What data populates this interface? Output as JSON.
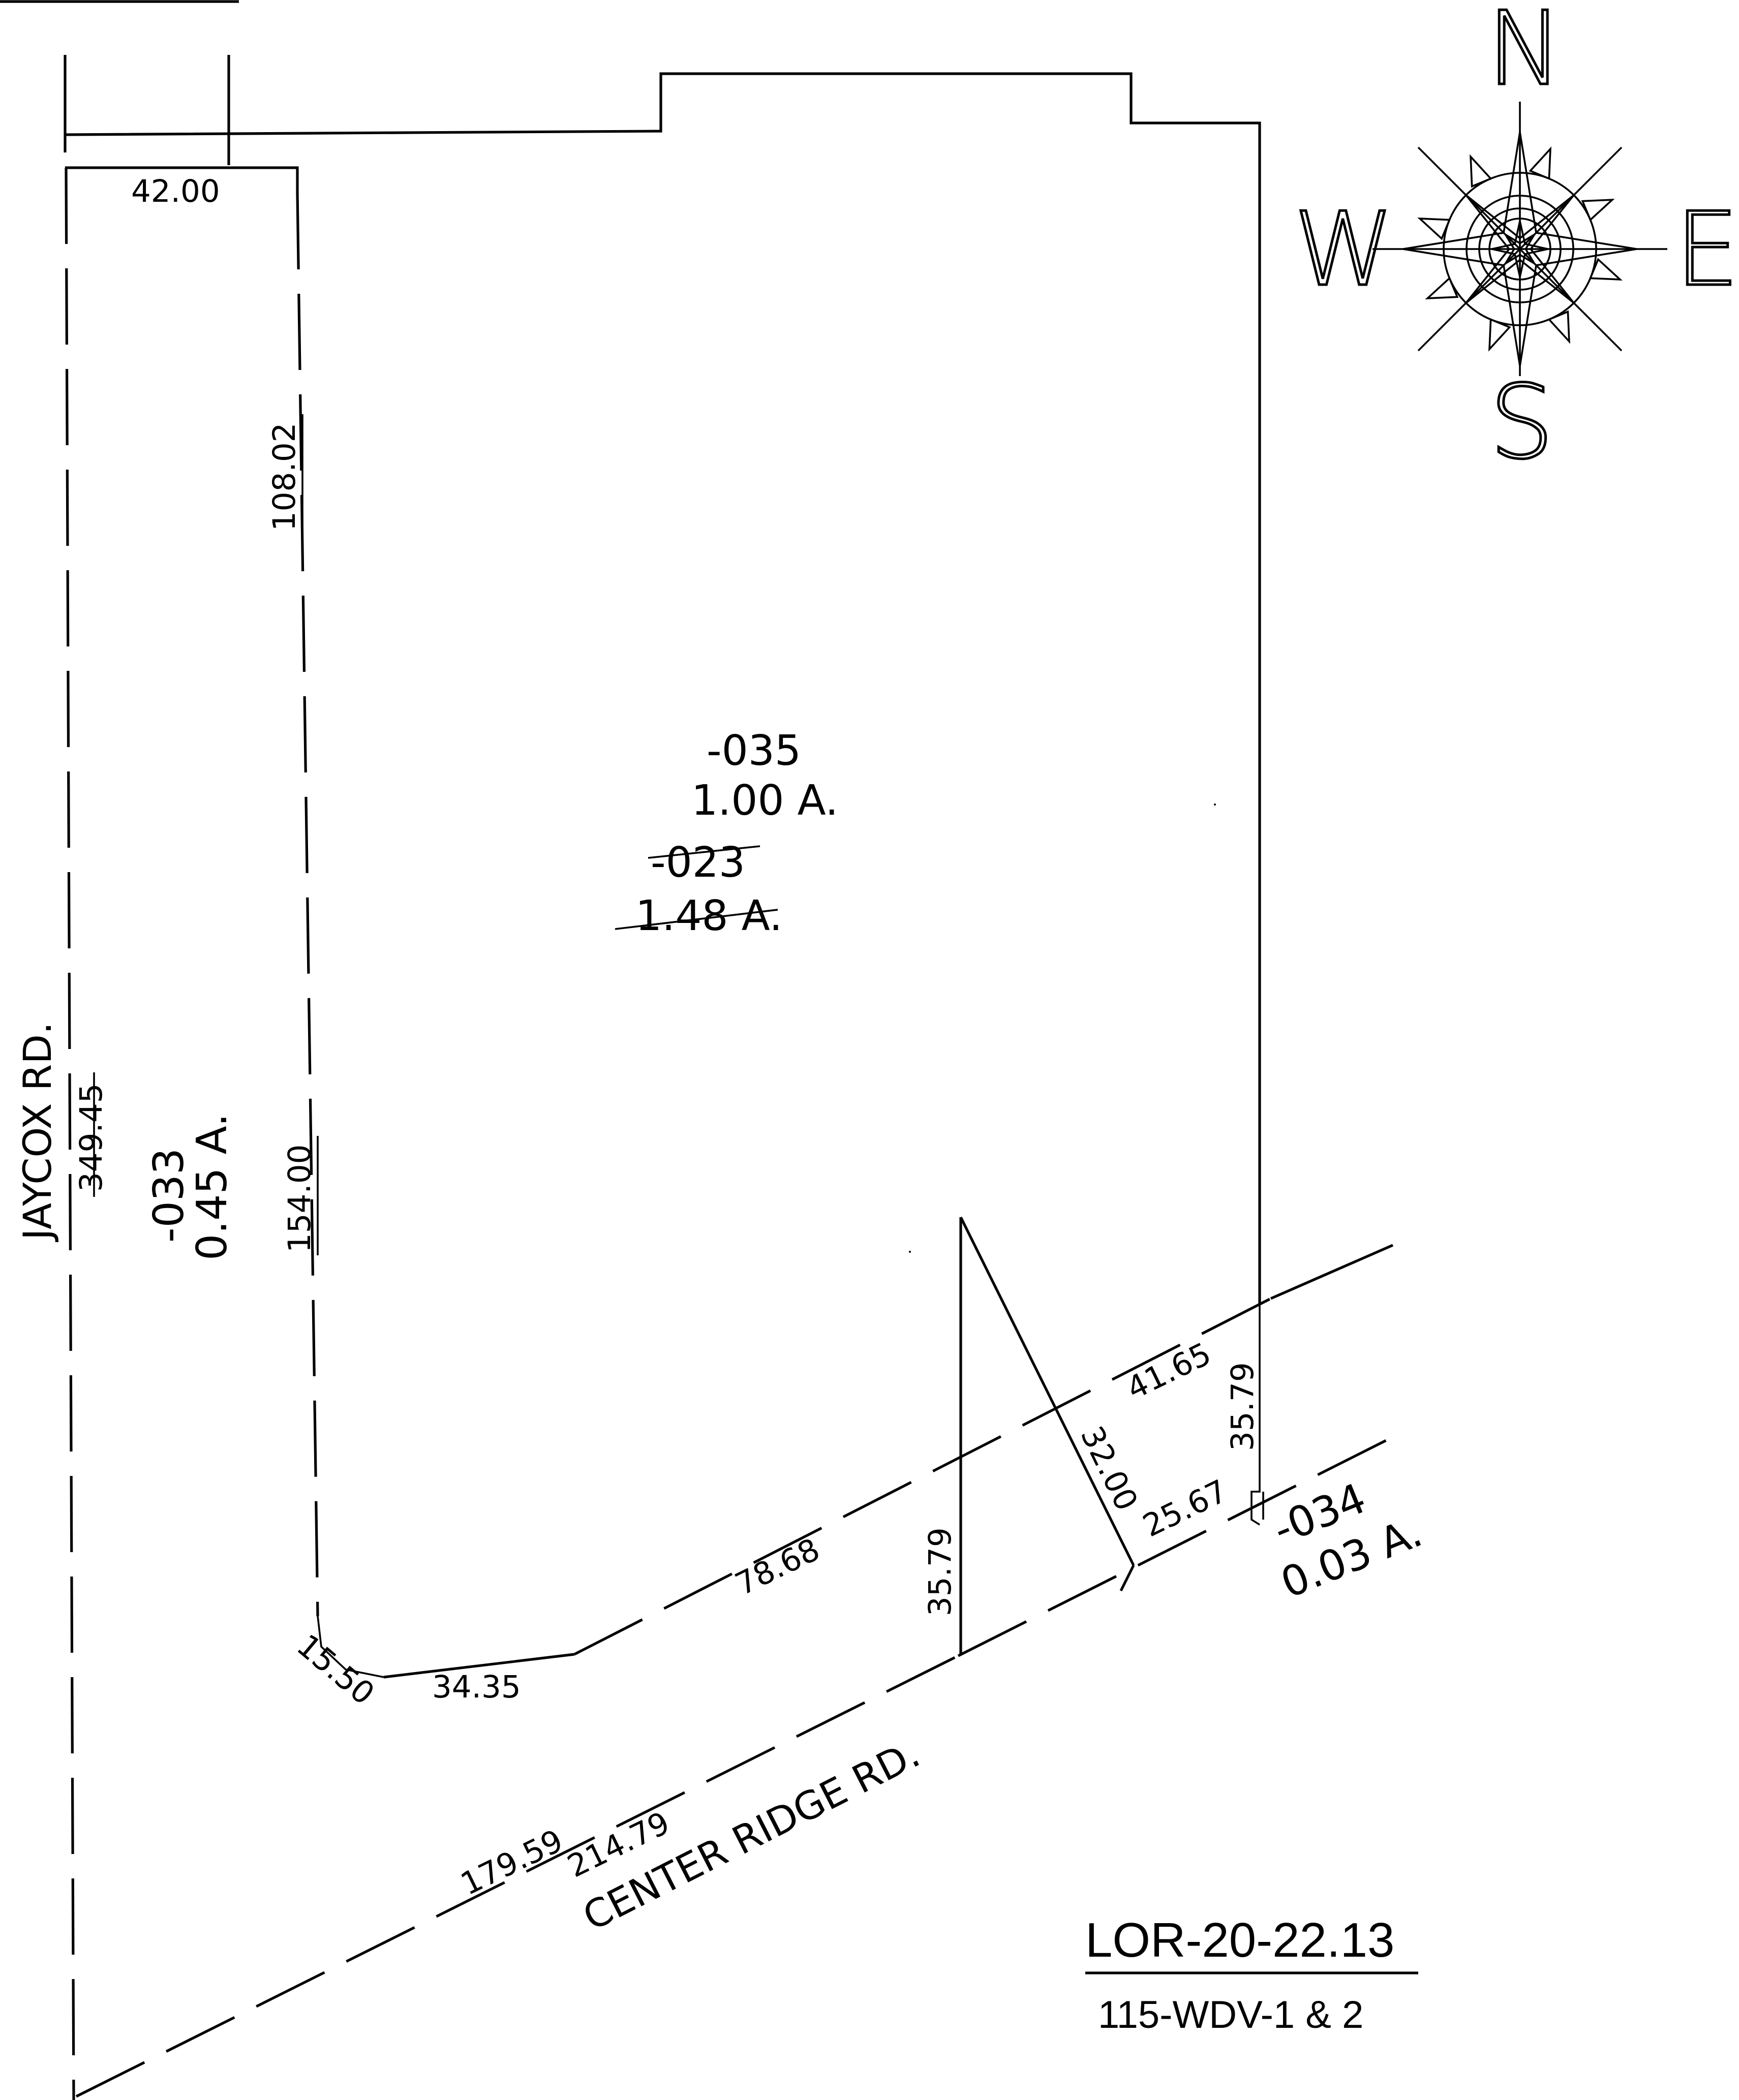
{
  "compass": {
    "north": "N",
    "south": "S",
    "east": "E",
    "west": "W"
  },
  "roads": {
    "west": "JAYCOX RD.",
    "south": "CENTER RIDGE RD."
  },
  "parcels": {
    "p035": {
      "id": "-035",
      "area": "1.00 A."
    },
    "p023": {
      "id": "-023",
      "area": "1.48 A.",
      "struck": true
    },
    "p033": {
      "id": "-033",
      "area": "0.45 A."
    },
    "p034": {
      "id": "-034",
      "area": "0.03 A."
    }
  },
  "dimensions": {
    "top_width": "42.00",
    "west_upper": "108.02",
    "west_lower": "154.00",
    "road_frontage": "349.45",
    "corner_arc": "15.50",
    "south_a": "34.35",
    "south_b": "78.68",
    "mid_vertical": "35.79",
    "diag": "32.00",
    "east_segment": "41.65",
    "east_vertical": "35.79",
    "row_segment": "25.67",
    "row_a": "179.59",
    "row_b": "214.79"
  },
  "title_block": {
    "project": "LOR-20-22.13",
    "sheet": "115-WDV-1 & 2"
  }
}
